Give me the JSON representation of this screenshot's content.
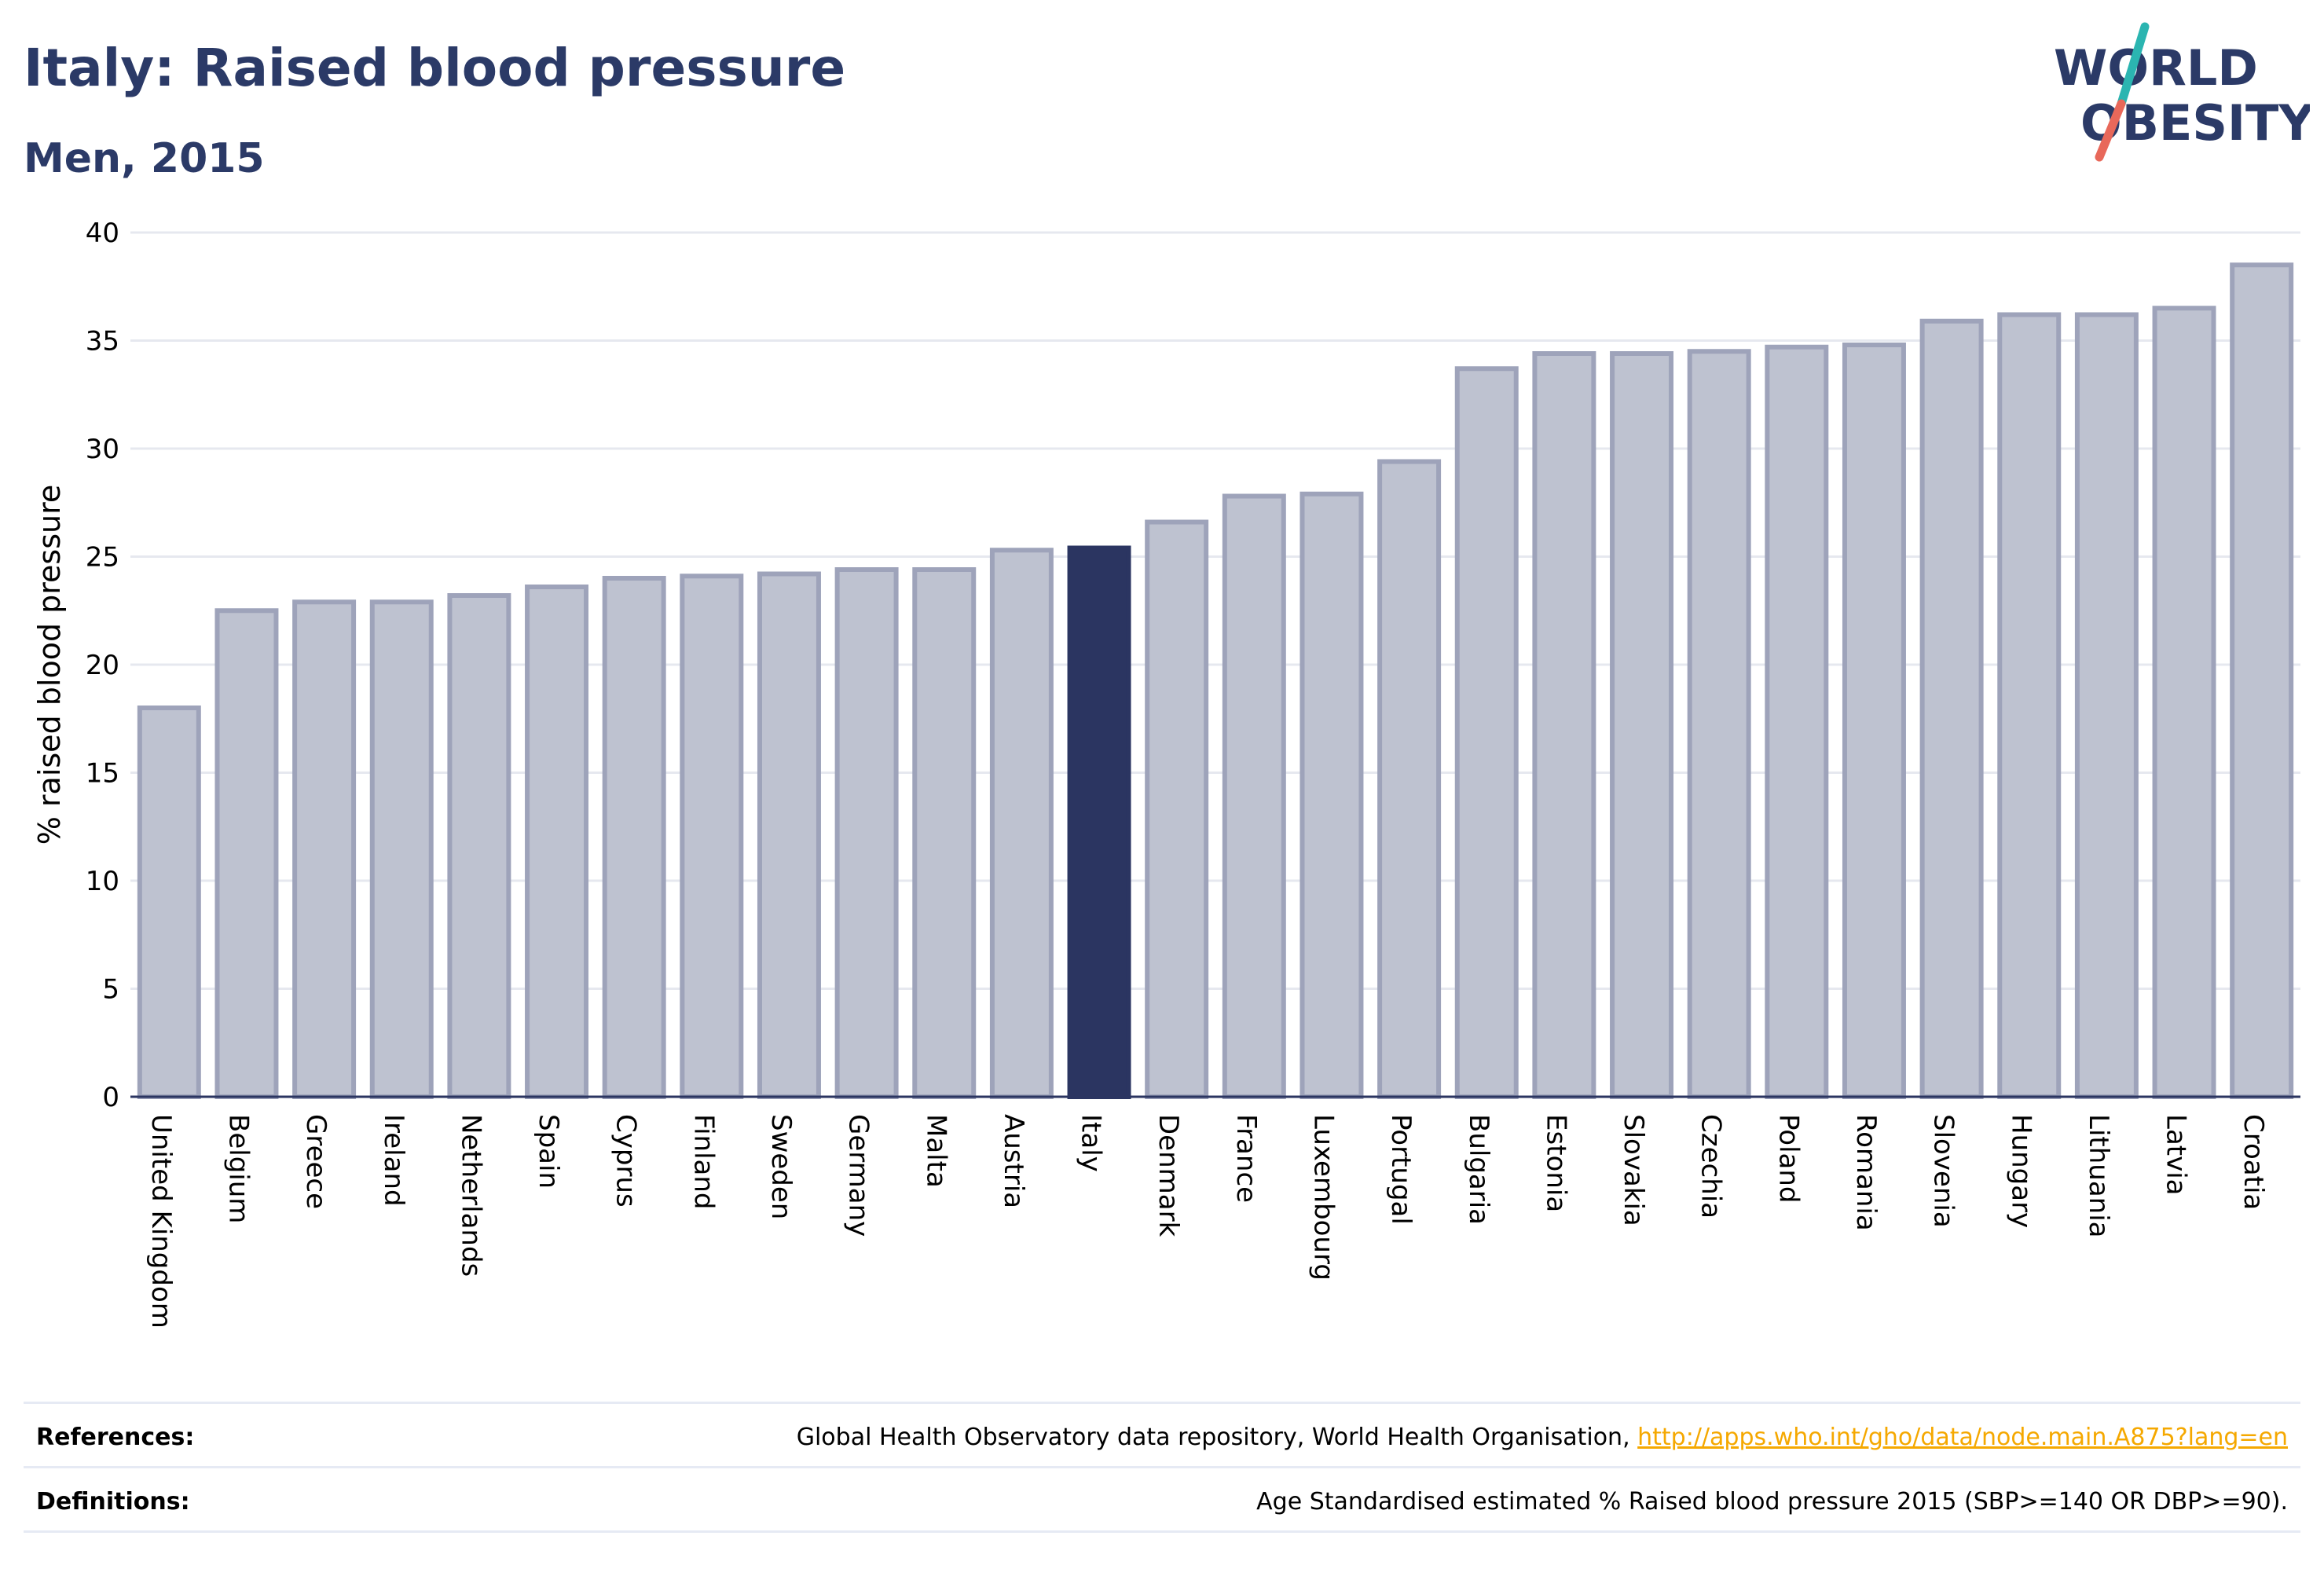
{
  "title": "Italy: Raised blood pressure",
  "subtitle": "Men, 2015",
  "logo": {
    "line1": "WORLD",
    "line2": "OBESITY",
    "colors": {
      "text": "#2b3a67",
      "slash_top": "#2bb5b1",
      "slash_bottom": "#e8685a"
    }
  },
  "colors": {
    "bar": "#bec2d0",
    "bar_stroke": "#9ea3ba",
    "highlight": "#2b3561",
    "grid": "#e6e8ef",
    "axis": "#2b3561",
    "title": "#2b3a67",
    "link": "#f5a800"
  },
  "chart_data": {
    "type": "bar",
    "title": "Italy: Raised blood pressure",
    "subtitle": "Men, 2015",
    "xlabel": "",
    "ylabel": "% raised blood pressure",
    "ylim": [
      0,
      40
    ],
    "yticks": [
      0,
      5,
      10,
      15,
      20,
      25,
      30,
      35,
      40
    ],
    "grid": true,
    "highlight": "Italy",
    "categories": [
      "United Kingdom",
      "Belgium",
      "Greece",
      "Ireland",
      "Netherlands",
      "Spain",
      "Cyprus",
      "Finland",
      "Sweden",
      "Germany",
      "Malta",
      "Austria",
      "Italy",
      "Denmark",
      "France",
      "Luxembourg",
      "Portugal",
      "Bulgaria",
      "Estonia",
      "Slovakia",
      "Czechia",
      "Poland",
      "Romania",
      "Slovenia",
      "Hungary",
      "Lithuania",
      "Latvia",
      "Croatia"
    ],
    "values": [
      18.0,
      22.5,
      22.9,
      22.9,
      23.2,
      23.6,
      24.0,
      24.1,
      24.2,
      24.4,
      24.4,
      25.3,
      25.4,
      26.6,
      27.8,
      27.9,
      29.4,
      33.7,
      34.4,
      34.4,
      34.5,
      34.7,
      34.8,
      35.9,
      36.2,
      36.2,
      36.5,
      38.5
    ]
  },
  "footer": {
    "references_label": "References:",
    "references_text": "Global Health Observatory data repository, World Health Organisation, ",
    "references_link": "http://apps.who.int/gho/data/node.main.A875?lang=en",
    "definitions_label": "Definitions:",
    "definitions_text": "Age Standardised estimated % Raised blood pressure 2015 (SBP>=140 OR DBP>=90)."
  }
}
